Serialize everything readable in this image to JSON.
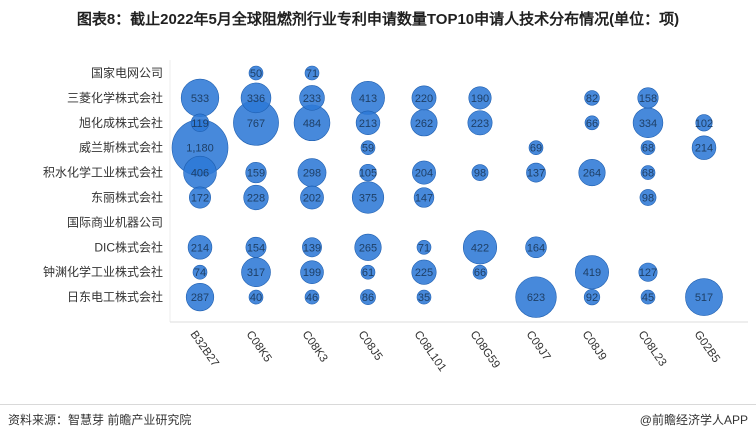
{
  "title": "图表8：截止2022年5月全球阻燃剂行业专利申请数量TOP10申请人技术分布情况(单位：项)",
  "source": "资料来源：智慧芽 前瞻产业研究院",
  "brand": "@前瞻经济学人APP",
  "chart_data": {
    "type": "bubble",
    "title": "图表8：截止2022年5月全球阻燃剂行业专利申请数量TOP10申请人技术分布情况(单位：项)",
    "rows": [
      "国家电网公司",
      "三菱化学株式会社",
      "旭化成株式会社",
      "威兰斯株式会社",
      "积水化学工业株式会社",
      "东丽株式会社",
      "国际商业机器公司",
      "DIC株式会社",
      "钟渊化学工业株式会社",
      "日东电工株式会社"
    ],
    "columns": [
      "B32B27",
      "C08K5",
      "C08K3",
      "C08J5",
      "C08L101",
      "C08G59",
      "C09J7",
      "C08J9",
      "C08L23",
      "G02B5"
    ],
    "values": [
      [
        null,
        50,
        71,
        null,
        null,
        null,
        null,
        null,
        null,
        null
      ],
      [
        533,
        336,
        233,
        413,
        220,
        190,
        null,
        82,
        158,
        null
      ],
      [
        119,
        767,
        484,
        213,
        262,
        223,
        null,
        66,
        334,
        102
      ],
      [
        1180,
        null,
        null,
        59,
        null,
        null,
        69,
        null,
        68,
        214
      ],
      [
        406,
        159,
        298,
        105,
        204,
        98,
        137,
        264,
        68,
        null
      ],
      [
        172,
        228,
        202,
        375,
        147,
        null,
        null,
        null,
        98,
        null
      ],
      [
        null,
        null,
        null,
        null,
        null,
        null,
        null,
        null,
        null,
        null
      ],
      [
        214,
        154,
        139,
        265,
        71,
        422,
        164,
        null,
        null,
        null
      ],
      [
        74,
        317,
        199,
        61,
        225,
        66,
        null,
        419,
        127,
        null
      ],
      [
        287,
        40,
        46,
        86,
        35,
        null,
        623,
        92,
        45,
        517
      ]
    ],
    "value_labels": [
      [
        null,
        "50",
        "71",
        null,
        null,
        null,
        null,
        null,
        null,
        null
      ],
      [
        "533",
        "336",
        "233",
        "413",
        "220",
        "190",
        null,
        "82",
        "158",
        null
      ],
      [
        "119",
        "767",
        "484",
        "213",
        "262",
        "223",
        null,
        "66",
        "334",
        "102"
      ],
      [
        "1,180",
        null,
        null,
        "59",
        null,
        null,
        "69",
        null,
        "68",
        "214"
      ],
      [
        "406",
        "159",
        "298",
        "105",
        "204",
        "98",
        "137",
        "264",
        "68",
        null
      ],
      [
        "172",
        "228",
        "202",
        "375",
        "147",
        null,
        null,
        null,
        "98",
        null
      ],
      [
        null,
        null,
        null,
        null,
        null,
        null,
        null,
        null,
        null,
        null
      ],
      [
        "214",
        "154",
        "139",
        "265",
        "71",
        "422",
        "164",
        null,
        null,
        null
      ],
      [
        "74",
        "317",
        "199",
        "61",
        "225",
        "66",
        null,
        "419",
        "127",
        null
      ],
      [
        "287",
        "40",
        "46",
        "86",
        "35",
        null,
        "623",
        "92",
        "45",
        "517"
      ]
    ],
    "colors": {
      "bubble": "#2e79d6",
      "bubble_stroke": "#1f5fb0",
      "label": "#1e3f66",
      "grid": "#eeeeee"
    }
  }
}
